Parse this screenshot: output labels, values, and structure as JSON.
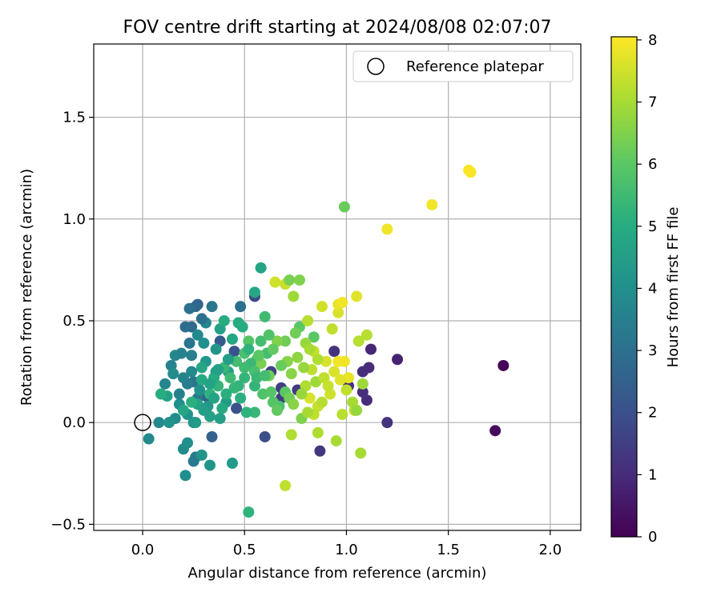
{
  "chart_data": {
    "type": "scatter",
    "title": "FOV centre drift starting at 2024/08/08 02:07:07",
    "xlabel": "Angular distance from reference (arcmin)",
    "ylabel": "Rotation from reference (arcmin)",
    "xlim": [
      -0.24,
      2.15
    ],
    "ylim": [
      -0.53,
      1.86
    ],
    "xticks": [
      0.0,
      0.5,
      1.0,
      1.5,
      2.0
    ],
    "xtick_labels": [
      "0.0",
      "0.5",
      "1.0",
      "1.5",
      "2.0"
    ],
    "yticks": [
      -0.5,
      0.0,
      0.5,
      1.0,
      1.5
    ],
    "ytick_labels": [
      "−0.5",
      "0.0",
      "0.5",
      "1.0",
      "1.5"
    ],
    "grid": true,
    "legend": {
      "placement": "top-right",
      "entries": [
        "Reference platepar"
      ]
    },
    "reference_point": {
      "x": 0.0,
      "y": 0.0
    },
    "colorbar": {
      "label": "Hours from first FF file",
      "min": 0,
      "max": 8.05,
      "ticks": [
        0,
        1,
        2,
        3,
        4,
        5,
        6,
        7,
        8
      ],
      "tick_labels": [
        "0",
        "1",
        "2",
        "3",
        "4",
        "5",
        "6",
        "7",
        "8"
      ],
      "colormap": "viridis"
    },
    "series": [
      {
        "points": [
          [
            1.77,
            0.28,
            0.1
          ],
          [
            1.73,
            -0.04,
            0.2
          ],
          [
            1.25,
            0.31,
            0.8
          ],
          [
            1.12,
            0.36,
            0.9
          ],
          [
            1.11,
            0.27,
            1.0
          ],
          [
            1.08,
            0.25,
            1.0
          ],
          [
            1.1,
            0.11,
            1.0
          ],
          [
            1.08,
            0.15,
            1.1
          ],
          [
            1.01,
            0.18,
            1.1
          ],
          [
            0.94,
            0.35,
            1.2
          ],
          [
            1.2,
            0.0,
            1.2
          ],
          [
            0.87,
            -0.14,
            1.3
          ],
          [
            0.76,
            0.16,
            1.4
          ],
          [
            0.68,
            0.17,
            1.5
          ],
          [
            0.68,
            0.12,
            1.5
          ],
          [
            0.63,
            0.25,
            1.6
          ],
          [
            0.55,
            0.62,
            1.8
          ],
          [
            0.6,
            -0.07,
            1.9
          ],
          [
            0.46,
            0.07,
            2.0
          ],
          [
            0.45,
            0.35,
            2.1
          ],
          [
            0.38,
            0.4,
            2.3
          ],
          [
            0.34,
            -0.07,
            2.5
          ],
          [
            0.31,
            0.13,
            2.5
          ],
          [
            0.27,
            0.58,
            2.6
          ],
          [
            0.26,
            0.57,
            2.7
          ],
          [
            0.24,
            0.47,
            2.8
          ],
          [
            0.23,
            0.56,
            3.0
          ],
          [
            0.48,
            0.57,
            3.0
          ],
          [
            0.23,
            0.39,
            3.1
          ],
          [
            0.25,
            0.2,
            3.1
          ],
          [
            0.27,
            0.12,
            3.2
          ],
          [
            0.25,
            -0.19,
            3.3
          ],
          [
            0.26,
            -0.17,
            3.3
          ],
          [
            0.22,
            0.19,
            3.4
          ],
          [
            0.24,
            0.33,
            3.5
          ],
          [
            0.2,
            0.22,
            3.6
          ],
          [
            0.14,
            0.28,
            3.6
          ],
          [
            0.16,
            0.33,
            3.7
          ],
          [
            0.11,
            0.19,
            3.7
          ],
          [
            0.08,
            0.0,
            3.8
          ],
          [
            0.03,
            -0.08,
            3.8
          ],
          [
            0.2,
            -0.13,
            3.9
          ],
          [
            0.21,
            -0.26,
            4.0
          ],
          [
            0.22,
            -0.1,
            4.0
          ],
          [
            0.25,
            0.0,
            4.1
          ],
          [
            0.29,
            -0.16,
            4.2
          ],
          [
            0.33,
            -0.21,
            4.2
          ],
          [
            0.31,
            0.3,
            4.3
          ],
          [
            0.36,
            0.25,
            4.3
          ],
          [
            0.44,
            -0.2,
            4.4
          ],
          [
            0.42,
            0.25,
            4.5
          ],
          [
            0.38,
            0.46,
            4.6
          ],
          [
            0.58,
            0.76,
            4.7
          ],
          [
            0.55,
            0.64,
            4.8
          ],
          [
            0.47,
            0.49,
            4.9
          ],
          [
            0.4,
            0.5,
            5.0
          ],
          [
            0.52,
            -0.44,
            5.2
          ],
          [
            0.33,
            0.14,
            5.2
          ],
          [
            0.47,
            0.18,
            5.2
          ],
          [
            0.5,
            0.22,
            5.3
          ],
          [
            0.55,
            0.05,
            5.4
          ],
          [
            0.6,
            0.52,
            5.5
          ],
          [
            0.61,
            0.34,
            5.6
          ],
          [
            0.67,
            0.08,
            5.7
          ],
          [
            0.56,
            0.31,
            5.8
          ],
          [
            0.77,
            0.47,
            6.0
          ],
          [
            0.84,
            0.42,
            6.0
          ],
          [
            0.99,
            1.06,
            6.2
          ],
          [
            0.75,
            0.44,
            6.3
          ],
          [
            0.7,
            0.4,
            6.3
          ],
          [
            0.58,
            0.29,
            6.4
          ],
          [
            0.66,
            0.4,
            6.5
          ],
          [
            0.71,
            0.3,
            6.6
          ],
          [
            0.8,
            0.39,
            6.8
          ],
          [
            0.85,
            0.2,
            6.9
          ],
          [
            1.07,
            -0.15,
            7.0
          ],
          [
            0.95,
            -0.09,
            7.0
          ],
          [
            0.86,
            -0.05,
            7.1
          ],
          [
            0.73,
            -0.06,
            7.1
          ],
          [
            1.04,
            0.06,
            7.2
          ],
          [
            0.98,
            0.04,
            7.2
          ],
          [
            0.83,
            0.26,
            7.3
          ],
          [
            0.84,
            0.35,
            7.4
          ],
          [
            0.88,
            0.57,
            7.5
          ],
          [
            0.7,
            0.68,
            7.4
          ],
          [
            0.9,
            0.3,
            7.6
          ],
          [
            0.96,
            0.54,
            7.6
          ],
          [
            1.01,
            0.22,
            7.8
          ],
          [
            1.05,
            0.62,
            7.7
          ],
          [
            0.96,
            0.58,
            7.8
          ],
          [
            0.98,
            0.59,
            7.9
          ],
          [
            0.99,
            0.3,
            7.9
          ],
          [
            0.96,
            0.3,
            7.9
          ],
          [
            1.2,
            0.95,
            7.9
          ],
          [
            1.42,
            1.07,
            7.9
          ],
          [
            1.6,
            1.24,
            8.0
          ],
          [
            1.61,
            1.23,
            8.0
          ],
          [
            0.7,
            -0.31,
            7.3
          ],
          [
            0.65,
            0.69,
            7.5
          ],
          [
            0.77,
            0.7,
            6.5
          ],
          [
            0.72,
            0.7,
            6.4
          ],
          [
            0.74,
            0.62,
            6.9
          ],
          [
            0.81,
            0.5,
            7.2
          ],
          [
            0.93,
            0.46,
            7.3
          ],
          [
            1.1,
            0.43,
            7.2
          ],
          [
            1.06,
            0.4,
            7.2
          ],
          [
            1.08,
            0.19,
            6.9
          ],
          [
            0.78,
            0.02,
            6.5
          ],
          [
            0.62,
            0.23,
            6.3
          ],
          [
            0.57,
            0.33,
            6.0
          ],
          [
            0.52,
            0.4,
            5.9
          ],
          [
            0.5,
            0.34,
            5.7
          ],
          [
            0.46,
            0.3,
            5.6
          ],
          [
            0.43,
            0.22,
            5.5
          ],
          [
            0.4,
            0.27,
            5.4
          ],
          [
            0.37,
            0.18,
            5.3
          ],
          [
            0.35,
            0.22,
            5.0
          ],
          [
            0.29,
            0.27,
            4.8
          ],
          [
            0.27,
            0.09,
            4.7
          ],
          [
            0.33,
            0.03,
            4.6
          ],
          [
            0.38,
            0.02,
            4.5
          ],
          [
            0.41,
            0.1,
            4.4
          ],
          [
            0.36,
            0.36,
            4.2
          ],
          [
            0.3,
            0.39,
            4.0
          ],
          [
            0.27,
            0.43,
            3.8
          ],
          [
            0.31,
            0.49,
            3.7
          ],
          [
            0.34,
            0.57,
            3.2
          ],
          [
            0.29,
            0.51,
            3.0
          ],
          [
            0.21,
            0.47,
            2.9
          ],
          [
            0.18,
            0.14,
            3.5
          ],
          [
            0.16,
            0.02,
            3.9
          ],
          [
            0.13,
            0.0,
            4.1
          ],
          [
            0.19,
            0.34,
            3.6
          ],
          [
            0.24,
            0.25,
            3.8
          ],
          [
            0.28,
            0.16,
            4.1
          ],
          [
            0.32,
            0.08,
            4.3
          ],
          [
            0.48,
            0.12,
            5.1
          ],
          [
            0.51,
            0.05,
            5.2
          ],
          [
            0.55,
            0.18,
            5.3
          ],
          [
            0.53,
            0.29,
            5.4
          ],
          [
            0.58,
            0.4,
            5.6
          ],
          [
            0.62,
            0.43,
            5.8
          ],
          [
            0.64,
            0.36,
            6.1
          ],
          [
            0.68,
            0.28,
            6.2
          ],
          [
            0.73,
            0.24,
            6.6
          ],
          [
            0.79,
            0.27,
            6.8
          ],
          [
            0.82,
            0.36,
            7.0
          ],
          [
            0.86,
            0.31,
            7.1
          ],
          [
            0.89,
            0.22,
            7.3
          ],
          [
            0.92,
            0.14,
            7.5
          ],
          [
            0.82,
            0.12,
            7.6
          ],
          [
            0.86,
            0.08,
            7.4
          ],
          [
            0.84,
            0.04,
            7.3
          ],
          [
            0.8,
            0.18,
            7.1
          ],
          [
            0.76,
            0.32,
            6.7
          ],
          [
            0.7,
            0.15,
            6.0
          ],
          [
            0.64,
            0.1,
            5.9
          ],
          [
            0.59,
            0.14,
            5.8
          ],
          [
            0.55,
            0.25,
            5.7
          ],
          [
            0.5,
            0.27,
            5.5
          ],
          [
            0.45,
            0.17,
            5.3
          ],
          [
            0.41,
            0.14,
            5.1
          ],
          [
            0.39,
            0.07,
            4.9
          ],
          [
            0.35,
            0.12,
            4.7
          ],
          [
            0.3,
            0.06,
            4.5
          ],
          [
            0.26,
            0.0,
            4.4
          ],
          [
            0.22,
            0.04,
            4.2
          ],
          [
            0.18,
            0.09,
            4.0
          ],
          [
            0.15,
            0.24,
            3.9
          ],
          [
            0.12,
            0.13,
            4.6
          ],
          [
            0.09,
            0.14,
            5.0
          ],
          [
            0.2,
            0.06,
            4.8
          ],
          [
            0.24,
            0.1,
            5.1
          ],
          [
            0.29,
            0.21,
            4.9
          ],
          [
            0.33,
            0.19,
            4.7
          ],
          [
            0.37,
            0.26,
            4.6
          ],
          [
            0.42,
            0.31,
            4.5
          ],
          [
            0.44,
            0.41,
            4.8
          ],
          [
            0.49,
            0.47,
            5.0
          ],
          [
            0.52,
            0.36,
            5.2
          ],
          [
            0.56,
            0.22,
            5.4
          ],
          [
            0.6,
            0.23,
            5.6
          ],
          [
            0.63,
            0.15,
            5.9
          ],
          [
            0.66,
            0.06,
            6.1
          ],
          [
            0.72,
            0.12,
            6.3
          ],
          [
            0.74,
            0.09,
            6.6
          ],
          [
            0.78,
            0.14,
            6.8
          ],
          [
            0.81,
            0.05,
            7.0
          ],
          [
            0.88,
            0.1,
            7.2
          ],
          [
            0.91,
            0.18,
            7.4
          ],
          [
            0.94,
            0.25,
            7.6
          ],
          [
            0.97,
            0.21,
            7.7
          ],
          [
            1.0,
            0.16,
            7.3
          ],
          [
            1.03,
            0.1,
            7.0
          ],
          [
            1.05,
            0.06,
            6.8
          ]
        ]
      }
    ]
  }
}
